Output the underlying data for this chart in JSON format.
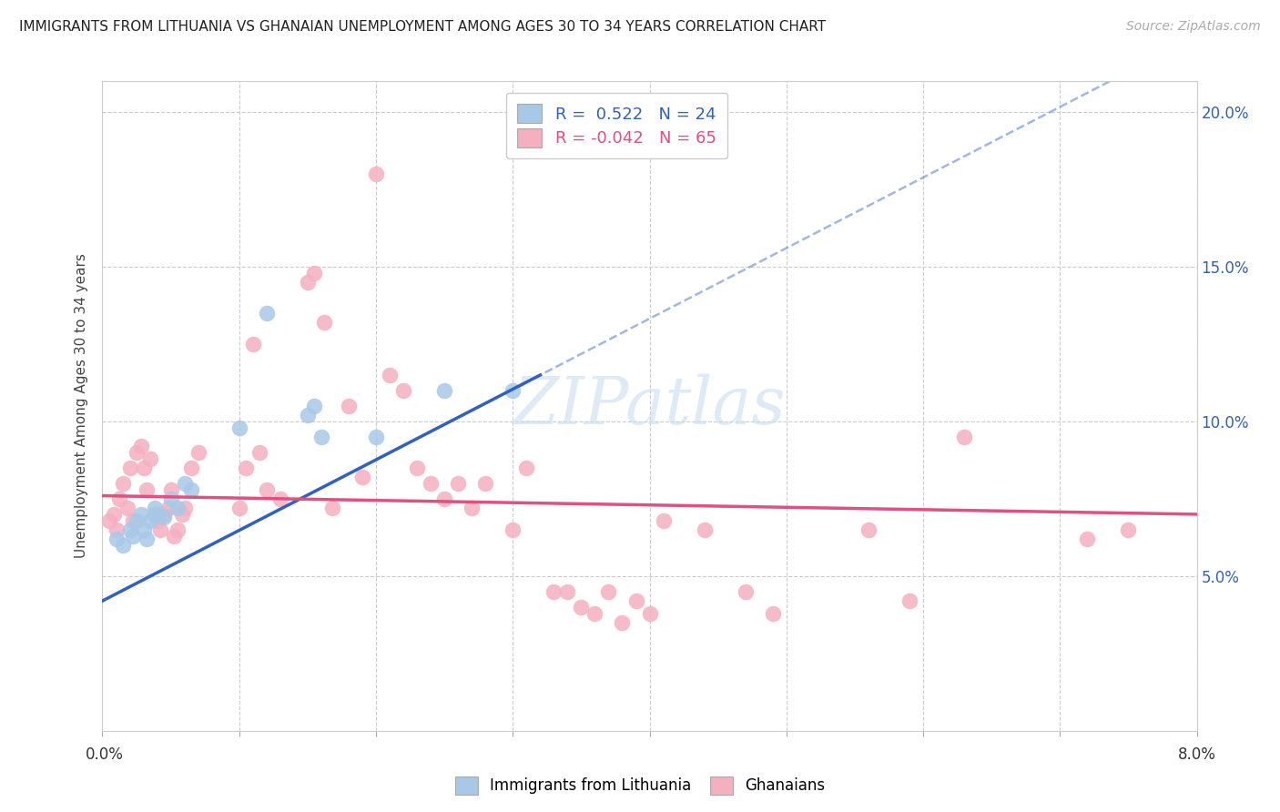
{
  "title": "IMMIGRANTS FROM LITHUANIA VS GHANAIAN UNEMPLOYMENT AMONG AGES 30 TO 34 YEARS CORRELATION CHART",
  "source": "Source: ZipAtlas.com",
  "ylabel": "Unemployment Among Ages 30 to 34 years",
  "xlim": [
    0.0,
    8.0
  ],
  "ylim": [
    0.0,
    21.0
  ],
  "right_yticks": [
    5.0,
    10.0,
    15.0,
    20.0
  ],
  "right_yticklabels": [
    "5.0%",
    "10.0%",
    "15.0%",
    "20.0%"
  ],
  "blue_R": "0.522",
  "blue_N": "24",
  "pink_R": "-0.042",
  "pink_N": "65",
  "legend_label_blue": "Immigrants from Lithuania",
  "legend_label_pink": "Ghanaians",
  "blue_color": "#a8c8e8",
  "pink_color": "#f5b0c0",
  "blue_line_color": "#3060c0",
  "pink_line_color": "#e05080",
  "blue_scatter": [
    [
      0.1,
      6.2
    ],
    [
      0.15,
      6.0
    ],
    [
      0.2,
      6.5
    ],
    [
      0.22,
      6.3
    ],
    [
      0.25,
      6.8
    ],
    [
      0.28,
      7.0
    ],
    [
      0.3,
      6.5
    ],
    [
      0.32,
      6.2
    ],
    [
      0.35,
      6.8
    ],
    [
      0.38,
      7.2
    ],
    [
      0.4,
      7.0
    ],
    [
      0.45,
      6.9
    ],
    [
      0.5,
      7.5
    ],
    [
      0.55,
      7.2
    ],
    [
      0.6,
      8.0
    ],
    [
      0.65,
      7.8
    ],
    [
      1.0,
      9.8
    ],
    [
      1.2,
      13.5
    ],
    [
      1.5,
      10.2
    ],
    [
      1.55,
      10.5
    ],
    [
      1.6,
      9.5
    ],
    [
      2.0,
      9.5
    ],
    [
      2.5,
      11.0
    ],
    [
      3.0,
      11.0
    ]
  ],
  "pink_scatter": [
    [
      0.05,
      6.8
    ],
    [
      0.08,
      7.0
    ],
    [
      0.1,
      6.5
    ],
    [
      0.12,
      7.5
    ],
    [
      0.15,
      8.0
    ],
    [
      0.18,
      7.2
    ],
    [
      0.2,
      8.5
    ],
    [
      0.22,
      6.8
    ],
    [
      0.25,
      9.0
    ],
    [
      0.28,
      9.2
    ],
    [
      0.3,
      8.5
    ],
    [
      0.32,
      7.8
    ],
    [
      0.35,
      8.8
    ],
    [
      0.38,
      7.0
    ],
    [
      0.4,
      6.8
    ],
    [
      0.42,
      6.5
    ],
    [
      0.45,
      7.0
    ],
    [
      0.48,
      7.2
    ],
    [
      0.5,
      7.8
    ],
    [
      0.52,
      6.3
    ],
    [
      0.55,
      6.5
    ],
    [
      0.58,
      7.0
    ],
    [
      0.6,
      7.2
    ],
    [
      0.65,
      8.5
    ],
    [
      0.7,
      9.0
    ],
    [
      1.0,
      7.2
    ],
    [
      1.05,
      8.5
    ],
    [
      1.1,
      12.5
    ],
    [
      1.15,
      9.0
    ],
    [
      1.2,
      7.8
    ],
    [
      1.3,
      7.5
    ],
    [
      1.5,
      14.5
    ],
    [
      1.55,
      14.8
    ],
    [
      1.62,
      13.2
    ],
    [
      1.68,
      7.2
    ],
    [
      1.8,
      10.5
    ],
    [
      1.9,
      8.2
    ],
    [
      2.0,
      18.0
    ],
    [
      2.1,
      11.5
    ],
    [
      2.2,
      11.0
    ],
    [
      2.3,
      8.5
    ],
    [
      2.4,
      8.0
    ],
    [
      2.5,
      7.5
    ],
    [
      2.6,
      8.0
    ],
    [
      2.7,
      7.2
    ],
    [
      2.8,
      8.0
    ],
    [
      3.0,
      6.5
    ],
    [
      3.1,
      8.5
    ],
    [
      3.3,
      4.5
    ],
    [
      3.4,
      4.5
    ],
    [
      3.5,
      4.0
    ],
    [
      3.6,
      3.8
    ],
    [
      3.7,
      4.5
    ],
    [
      3.8,
      3.5
    ],
    [
      3.9,
      4.2
    ],
    [
      4.0,
      3.8
    ],
    [
      4.1,
      6.8
    ],
    [
      4.4,
      6.5
    ],
    [
      4.7,
      4.5
    ],
    [
      4.9,
      3.8
    ],
    [
      5.6,
      6.5
    ],
    [
      5.9,
      4.2
    ],
    [
      6.3,
      9.5
    ],
    [
      7.2,
      6.2
    ],
    [
      7.5,
      6.5
    ]
  ],
  "blue_line_x0": 0.0,
  "blue_line_y0": 4.2,
  "blue_line_x1": 3.2,
  "blue_line_y1": 11.5,
  "pink_line_x0": 0.0,
  "pink_line_y0": 7.6,
  "pink_line_x1": 8.0,
  "pink_line_y1": 7.0,
  "watermark": "ZIPatlas",
  "background_color": "#ffffff",
  "grid_color": "#cccccc"
}
